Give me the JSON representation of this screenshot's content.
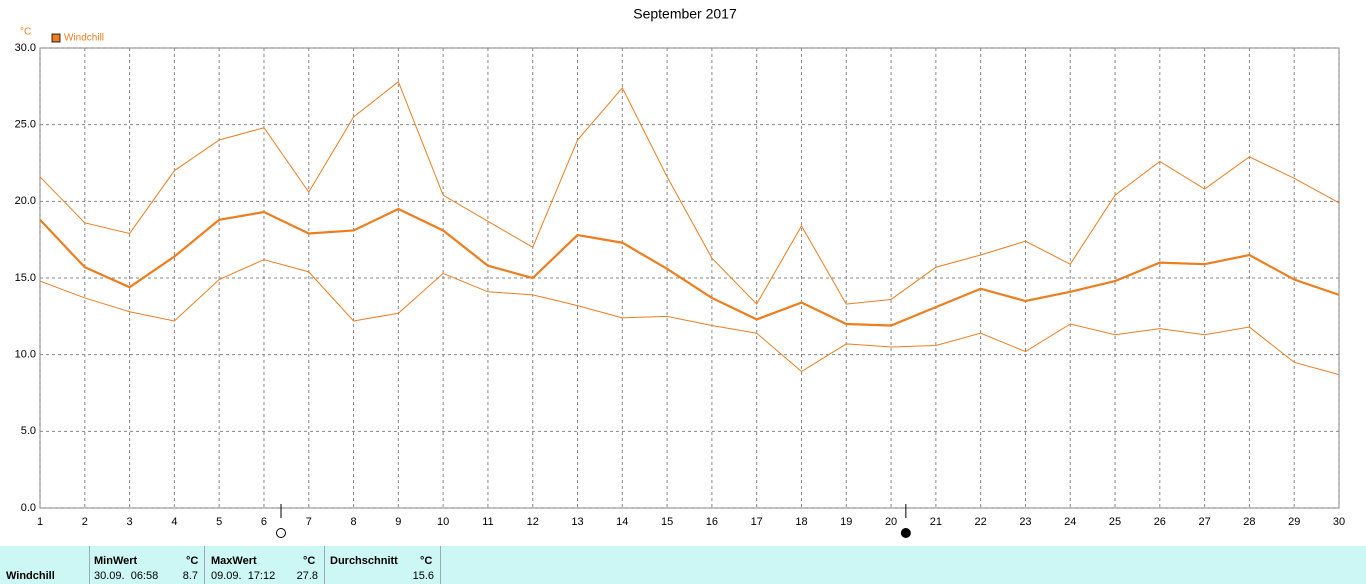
{
  "chart_data": {
    "type": "line",
    "title": "September 2017",
    "y_unit": "°C",
    "x": [
      1,
      2,
      3,
      4,
      5,
      6,
      7,
      8,
      9,
      10,
      11,
      12,
      13,
      14,
      15,
      16,
      17,
      18,
      19,
      20,
      21,
      22,
      23,
      24,
      25,
      26,
      27,
      28,
      29,
      30
    ],
    "xlim": [
      1,
      30
    ],
    "xticks": [
      1,
      2,
      3,
      4,
      5,
      6,
      7,
      8,
      9,
      10,
      11,
      12,
      13,
      14,
      15,
      16,
      17,
      18,
      19,
      20,
      21,
      22,
      23,
      24,
      25,
      26,
      27,
      28,
      29,
      30
    ],
    "ylim": [
      0,
      30
    ],
    "yticks": [
      {
        "value": 0,
        "label": "0.0"
      },
      {
        "value": 5,
        "label": "5.0"
      },
      {
        "value": 10,
        "label": "10.0"
      },
      {
        "value": 15,
        "label": "15.0"
      },
      {
        "value": 20,
        "label": "20.0"
      },
      {
        "value": 25,
        "label": "25.0"
      },
      {
        "value": 30,
        "label": "30.0"
      }
    ],
    "grid": true,
    "series": [
      {
        "name": "Windchill",
        "color": "#ee7d1e",
        "width": 2.2,
        "values": [
          18.8,
          15.7,
          14.4,
          16.4,
          18.8,
          19.3,
          17.9,
          18.1,
          19.5,
          18.1,
          15.8,
          15.0,
          17.8,
          17.3,
          15.6,
          13.7,
          12.3,
          13.4,
          12.0,
          11.9,
          13.1,
          14.3,
          13.5,
          14.1,
          14.8,
          16.0,
          15.9,
          16.5,
          14.9,
          13.9
        ]
      },
      {
        "color": "#ee7d1e",
        "width": 1,
        "values": [
          21.6,
          18.6,
          17.9,
          22.0,
          24.0,
          24.8,
          20.6,
          25.5,
          27.8,
          20.4,
          18.7,
          17.0,
          24.0,
          27.4,
          21.6,
          16.3,
          13.3,
          18.4,
          13.3,
          13.6,
          15.7,
          16.5,
          17.4,
          15.9,
          20.4,
          22.6,
          20.8,
          22.9,
          21.5,
          19.9
        ]
      },
      {
        "color": "#ee7d1e",
        "width": 1,
        "values": [
          14.8,
          13.7,
          12.8,
          12.2,
          14.9,
          16.2,
          15.4,
          12.2,
          12.7,
          15.3,
          14.1,
          13.9,
          13.2,
          12.4,
          12.5,
          11.9,
          11.4,
          8.9,
          10.7,
          10.5,
          10.6,
          11.4,
          10.2,
          12.0,
          11.3,
          11.7,
          11.3,
          11.8,
          9.5,
          8.7
        ]
      }
    ],
    "moon_x": [
      6.38,
      20.33
    ],
    "moon_fill": [
      "#fff",
      "#000"
    ]
  },
  "summary": {
    "label": "Windchill",
    "min": {
      "title": "MinWert",
      "unit": "°C",
      "time": "30.09.  06:58",
      "value": 8.7
    },
    "max": {
      "title": "MaxWert",
      "unit": "°C",
      "time": "09.09.  17:12",
      "value": 27.8
    },
    "avg": {
      "title": "Durchschnitt",
      "unit": "°C",
      "value": 15.6
    }
  }
}
